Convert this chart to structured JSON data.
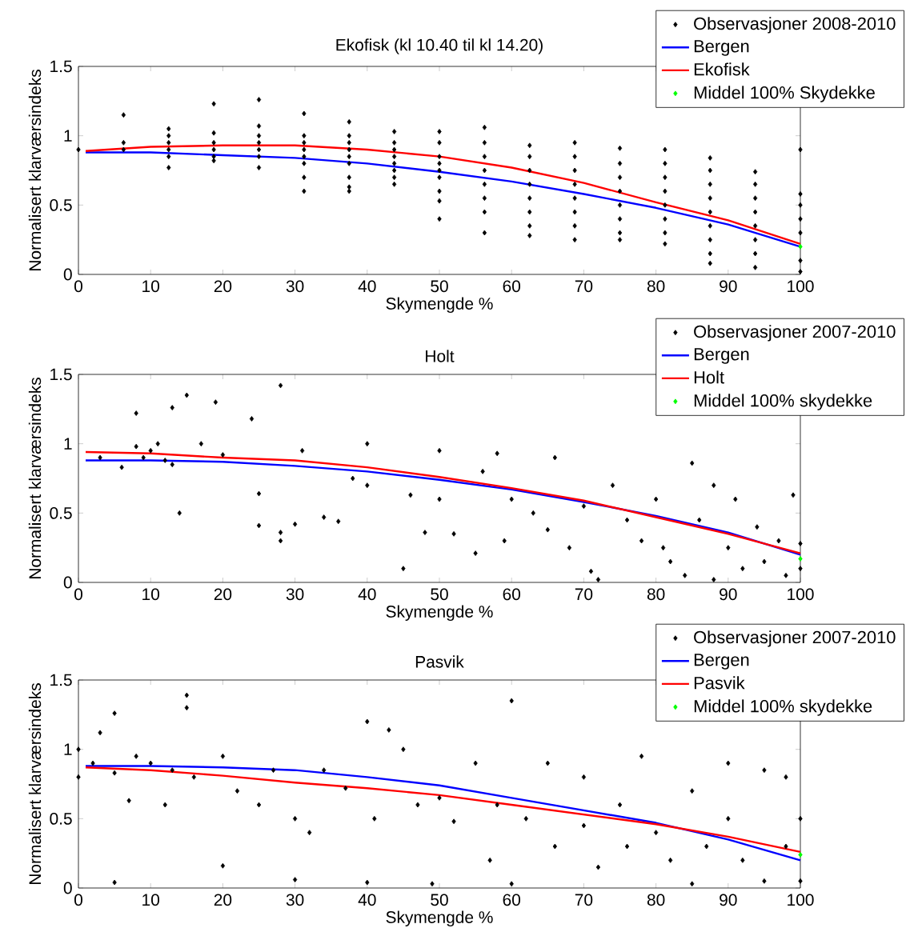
{
  "chart_data": [
    {
      "type": "scatter",
      "title": "Ekofisk (kl 10.40 til kl 14.20)",
      "xlabel": "Skymengde %",
      "ylabel": "Normalisert klarværsindeks",
      "xlim": [
        0,
        100
      ],
      "ylim": [
        0,
        1.5
      ],
      "xticks": [
        0,
        10,
        20,
        30,
        40,
        50,
        60,
        70,
        80,
        90,
        100
      ],
      "yticks": [
        0,
        0.5,
        1,
        1.5
      ],
      "legend": "top right",
      "series": [
        {
          "name": "Observasjoner 2008-2010",
          "type": "scatter",
          "marker": "diamond",
          "color": "#000000",
          "x": [
            0,
            6.25,
            6.25,
            6.25,
            12.5,
            12.5,
            12.5,
            12.5,
            12.5,
            12.5,
            18.75,
            18.75,
            18.75,
            18.75,
            18.75,
            18.75,
            25,
            25,
            25,
            25,
            25,
            25,
            25,
            31.25,
            31.25,
            31.25,
            31.25,
            31.25,
            31.25,
            31.25,
            31.25,
            37.5,
            37.5,
            37.5,
            37.5,
            37.5,
            37.5,
            37.5,
            37.5,
            37.5,
            43.75,
            43.75,
            43.75,
            43.75,
            43.75,
            43.75,
            43.75,
            43.75,
            50,
            50,
            50,
            50,
            50,
            50,
            50,
            50,
            50,
            56.25,
            56.25,
            56.25,
            56.25,
            56.25,
            56.25,
            56.25,
            56.25,
            62.5,
            62.5,
            62.5,
            62.5,
            62.5,
            62.5,
            62.5,
            62.5,
            68.75,
            68.75,
            68.75,
            68.75,
            68.75,
            68.75,
            68.75,
            68.75,
            75,
            75,
            75,
            75,
            75,
            75,
            75,
            75,
            81.25,
            81.25,
            81.25,
            81.25,
            81.25,
            81.25,
            81.25,
            81.25,
            87.5,
            87.5,
            87.5,
            87.5,
            87.5,
            87.5,
            87.5,
            87.5,
            87.5,
            93.75,
            93.75,
            93.75,
            93.75,
            93.75,
            93.75,
            93.75,
            93.75,
            100,
            100,
            100,
            100,
            100,
            100,
            100
          ],
          "values": [
            0.9,
            1.15,
            0.95,
            0.9,
            1.05,
            1.0,
            0.95,
            0.9,
            0.85,
            0.77,
            1.23,
            1.02,
            0.95,
            0.9,
            0.85,
            0.82,
            1.26,
            1.07,
            1.0,
            0.95,
            0.9,
            0.85,
            0.77,
            1.16,
            1.0,
            0.95,
            0.9,
            0.85,
            0.8,
            0.7,
            0.6,
            1.1,
            1.0,
            0.95,
            0.9,
            0.85,
            0.8,
            0.7,
            0.63,
            0.6,
            1.03,
            0.95,
            0.9,
            0.85,
            0.8,
            0.75,
            0.7,
            0.65,
            1.03,
            0.95,
            0.85,
            0.8,
            0.75,
            0.7,
            0.6,
            0.53,
            0.4,
            1.06,
            0.95,
            0.85,
            0.75,
            0.65,
            0.55,
            0.45,
            0.3,
            0.93,
            0.85,
            0.75,
            0.65,
            0.55,
            0.45,
            0.35,
            0.28,
            0.95,
            0.85,
            0.75,
            0.65,
            0.55,
            0.45,
            0.35,
            0.25,
            0.91,
            0.8,
            0.7,
            0.6,
            0.5,
            0.4,
            0.3,
            0.25,
            0.9,
            0.8,
            0.7,
            0.6,
            0.5,
            0.4,
            0.3,
            0.22,
            0.84,
            0.75,
            0.65,
            0.55,
            0.45,
            0.35,
            0.25,
            0.15,
            0.08,
            0.74,
            0.65,
            0.55,
            0.45,
            0.35,
            0.25,
            0.15,
            0.05,
            0.9,
            0.58,
            0.5,
            0.4,
            0.3,
            0.1,
            0.02
          ]
        },
        {
          "name": "Bergen",
          "type": "line",
          "marker": "none",
          "color": "#0000ff",
          "x": [
            1,
            10,
            20,
            30,
            40,
            50,
            60,
            70,
            80,
            90,
            100
          ],
          "values": [
            0.88,
            0.88,
            0.86,
            0.84,
            0.8,
            0.74,
            0.67,
            0.58,
            0.48,
            0.36,
            0.2
          ]
        },
        {
          "name": "Ekofisk",
          "type": "line",
          "marker": "none",
          "color": "#ff0000",
          "x": [
            1,
            10,
            20,
            30,
            40,
            50,
            60,
            70,
            80,
            90,
            100
          ],
          "values": [
            0.89,
            0.92,
            0.93,
            0.93,
            0.9,
            0.85,
            0.77,
            0.66,
            0.52,
            0.39,
            0.22
          ]
        },
        {
          "name": "Middel 100% Skydekke",
          "type": "scatter",
          "marker": "diamond",
          "color": "#00ff00",
          "x": [
            100
          ],
          "values": [
            0.2
          ]
        }
      ]
    },
    {
      "type": "scatter",
      "title": "Holt",
      "xlabel": "Skymengde %",
      "ylabel": "Normalisert klarværsindeks",
      "xlim": [
        0,
        100
      ],
      "ylim": [
        0,
        1.5
      ],
      "xticks": [
        0,
        10,
        20,
        30,
        40,
        50,
        60,
        70,
        80,
        90,
        100
      ],
      "yticks": [
        0,
        0.5,
        1,
        1.5
      ],
      "legend": "top right",
      "series": [
        {
          "name": "Observasjoner 2007-2010",
          "type": "scatter",
          "marker": "diamond",
          "color": "#000000",
          "x": [
            3,
            6,
            8,
            8,
            9,
            10,
            11,
            12,
            13,
            13,
            14,
            15,
            17,
            19,
            20,
            24,
            25,
            25,
            28,
            28,
            28,
            30,
            31,
            34,
            36,
            38,
            40,
            40,
            45,
            46,
            48,
            50,
            50,
            52,
            55,
            56,
            58,
            59,
            60,
            63,
            66,
            65,
            68,
            70,
            71,
            72,
            74,
            76,
            78,
            80,
            81,
            82,
            84,
            85,
            86,
            88,
            88,
            90,
            91,
            92,
            94,
            95,
            97,
            98,
            99,
            100,
            100
          ],
          "values": [
            0.9,
            0.83,
            1.22,
            0.98,
            0.9,
            0.95,
            1.0,
            0.88,
            1.26,
            0.85,
            0.5,
            1.35,
            1.0,
            1.3,
            0.92,
            1.18,
            0.41,
            0.64,
            1.42,
            0.3,
            0.36,
            0.42,
            0.95,
            0.47,
            0.44,
            0.75,
            1.0,
            0.7,
            0.1,
            0.63,
            0.36,
            0.6,
            0.95,
            0.35,
            0.21,
            0.8,
            0.93,
            0.3,
            0.6,
            0.5,
            0.9,
            0.38,
            0.25,
            0.55,
            0.08,
            0.02,
            0.7,
            0.45,
            0.3,
            0.6,
            0.25,
            0.15,
            0.05,
            0.86,
            0.45,
            0.7,
            0.02,
            0.25,
            0.6,
            0.1,
            0.4,
            0.15,
            0.3,
            0.05,
            0.63,
            0.28,
            0.1
          ]
        },
        {
          "name": "Bergen",
          "type": "line",
          "marker": "none",
          "color": "#0000ff",
          "x": [
            1,
            10,
            20,
            30,
            40,
            50,
            60,
            70,
            80,
            90,
            100
          ],
          "values": [
            0.88,
            0.88,
            0.87,
            0.84,
            0.8,
            0.74,
            0.67,
            0.58,
            0.48,
            0.36,
            0.2
          ]
        },
        {
          "name": "Holt",
          "type": "line",
          "marker": "none",
          "color": "#ff0000",
          "x": [
            1,
            10,
            20,
            30,
            40,
            50,
            60,
            70,
            80,
            90,
            100
          ],
          "values": [
            0.94,
            0.93,
            0.9,
            0.88,
            0.83,
            0.76,
            0.68,
            0.59,
            0.47,
            0.35,
            0.21
          ]
        },
        {
          "name": "Middel 100% skydekke",
          "type": "scatter",
          "marker": "diamond",
          "color": "#00ff00",
          "x": [
            100
          ],
          "values": [
            0.17
          ]
        }
      ]
    },
    {
      "type": "scatter",
      "title": "Pasvik",
      "xlabel": "Skymengde %",
      "ylabel": "Normalisert klarværsindeks",
      "xlim": [
        0,
        100
      ],
      "ylim": [
        0,
        1.5
      ],
      "xticks": [
        0,
        10,
        20,
        30,
        40,
        50,
        60,
        70,
        80,
        90,
        100
      ],
      "yticks": [
        0,
        0.5,
        1,
        1.5
      ],
      "legend": "top right",
      "series": [
        {
          "name": "Observasjoner 2007-2010",
          "type": "scatter",
          "marker": "diamond",
          "color": "#000000",
          "x": [
            0,
            0,
            2,
            3,
            5,
            5,
            5,
            7,
            8,
            10,
            12,
            13,
            15,
            15,
            16,
            20,
            20,
            22,
            25,
            27,
            30,
            30,
            32,
            34,
            37,
            40,
            40,
            41,
            43,
            45,
            47,
            49,
            50,
            52,
            55,
            57,
            58,
            60,
            60,
            62,
            65,
            66,
            70,
            70,
            72,
            75,
            76,
            78,
            80,
            82,
            85,
            85,
            87,
            90,
            90,
            92,
            95,
            95,
            98,
            98,
            100,
            100
          ],
          "values": [
            1.0,
            0.8,
            0.9,
            1.12,
            1.26,
            0.04,
            0.83,
            0.63,
            0.95,
            0.9,
            0.6,
            0.85,
            1.39,
            1.3,
            0.8,
            0.16,
            0.95,
            0.7,
            0.6,
            0.85,
            0.06,
            0.5,
            0.4,
            0.85,
            0.72,
            0.04,
            1.2,
            0.5,
            1.14,
            1.0,
            0.6,
            0.03,
            0.65,
            0.48,
            0.9,
            0.2,
            0.6,
            0.03,
            1.35,
            0.5,
            0.9,
            0.3,
            0.8,
            0.45,
            0.15,
            0.6,
            0.3,
            0.95,
            0.4,
            0.2,
            0.03,
            0.7,
            0.3,
            0.9,
            0.5,
            0.2,
            0.85,
            0.05,
            0.8,
            0.3,
            0.5,
            0.05
          ]
        },
        {
          "name": "Bergen",
          "type": "line",
          "marker": "none",
          "color": "#0000ff",
          "x": [
            1,
            10,
            20,
            30,
            40,
            50,
            60,
            70,
            80,
            90,
            100
          ],
          "values": [
            0.88,
            0.88,
            0.87,
            0.85,
            0.8,
            0.74,
            0.65,
            0.56,
            0.47,
            0.35,
            0.2
          ]
        },
        {
          "name": "Pasvik",
          "type": "line",
          "marker": "none",
          "color": "#ff0000",
          "x": [
            1,
            10,
            20,
            30,
            40,
            50,
            60,
            70,
            80,
            90,
            100
          ],
          "values": [
            0.87,
            0.85,
            0.81,
            0.76,
            0.72,
            0.67,
            0.6,
            0.53,
            0.46,
            0.37,
            0.26
          ]
        },
        {
          "name": "Middel 100% skydekke",
          "type": "scatter",
          "marker": "diamond",
          "color": "#00ff00",
          "x": [
            100
          ],
          "values": [
            0.24
          ]
        }
      ]
    }
  ]
}
